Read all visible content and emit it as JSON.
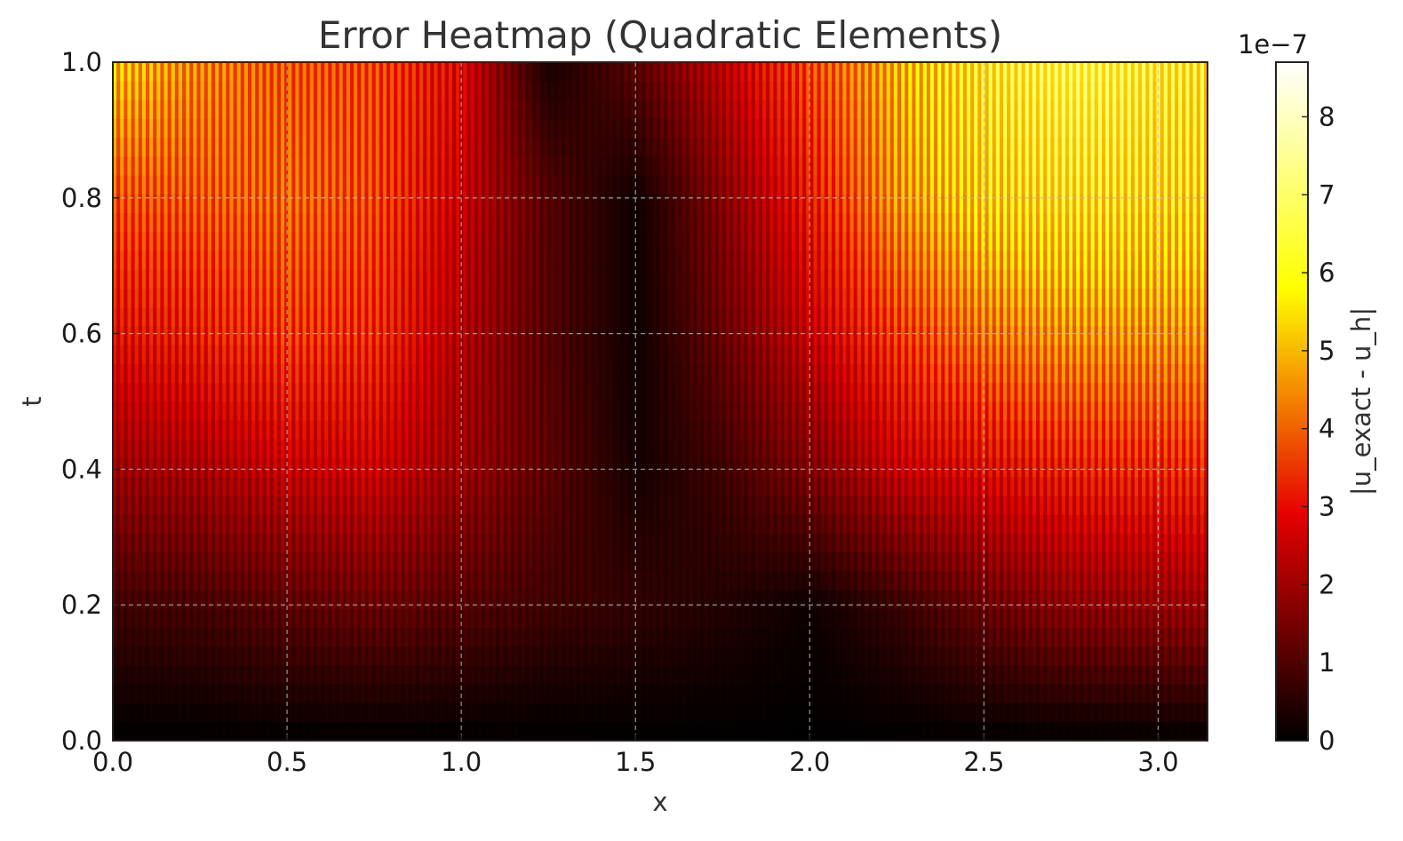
{
  "chart_data": {
    "type": "heatmap",
    "title": "Error Heatmap (Quadratic Elements)",
    "xlabel": "x",
    "ylabel": "t",
    "xlim": [
      0.0,
      3.14159
    ],
    "ylim": [
      0.0,
      1.0
    ],
    "xticks": [
      "0.0",
      "0.5",
      "1.0",
      "1.5",
      "2.0",
      "2.5",
      "3.0"
    ],
    "yticks": [
      "0.0",
      "0.2",
      "0.4",
      "0.6",
      "0.8",
      "1.0"
    ],
    "grid": true,
    "colormap": "hot",
    "colormap_stops": [
      "#000000",
      "#e60000",
      "#ffff00",
      "#ffffff"
    ],
    "colorbar": {
      "label": "|u_exact - u_h|",
      "offset_text": "1e−7",
      "range": [
        0,
        8.7
      ],
      "ticks": [
        "0",
        "1",
        "2",
        "3",
        "4",
        "5",
        "6",
        "7",
        "8"
      ]
    },
    "x_samples": [
      0.0,
      0.25,
      0.5,
      0.75,
      1.0,
      1.25,
      1.5,
      1.75,
      2.0,
      2.25,
      2.5,
      2.75,
      3.14
    ],
    "t_samples": [
      0.0,
      0.2,
      0.4,
      0.6,
      0.8,
      1.0
    ],
    "values": [
      [
        0.0,
        0.0,
        0.0,
        0.0,
        0.0,
        0.0,
        0.0,
        0.0,
        0.0,
        0.0,
        0.0,
        0.0,
        0.0
      ],
      [
        0.9,
        1.0,
        1.3,
        1.5,
        1.2,
        0.9,
        0.7,
        0.5,
        0.2,
        0.8,
        1.5,
        2.0,
        2.2
      ],
      [
        2.2,
        2.4,
        2.8,
        2.9,
        2.2,
        1.3,
        0.3,
        0.9,
        1.8,
        2.8,
        3.2,
        3.6,
        3.8
      ],
      [
        3.3,
        3.6,
        4.0,
        3.8,
        2.5,
        1.2,
        0.2,
        1.5,
        2.8,
        4.0,
        4.8,
        5.2,
        5.2
      ],
      [
        4.3,
        4.4,
        4.6,
        4.2,
        2.8,
        1.2,
        0.2,
        1.9,
        3.5,
        5.2,
        6.2,
        6.6,
        6.3
      ],
      [
        5.8,
        5.0,
        4.4,
        4.2,
        3.2,
        0.3,
        1.3,
        2.7,
        4.2,
        5.6,
        6.8,
        7.4,
        6.8
      ]
    ]
  }
}
